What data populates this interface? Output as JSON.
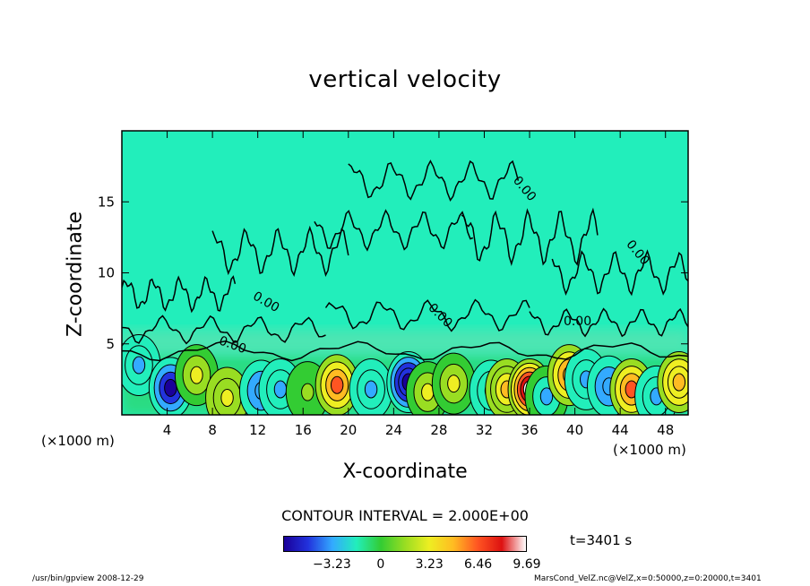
{
  "chart_data": {
    "type": "heatmap",
    "title": "vertical velocity",
    "xlabel": "X-coordinate",
    "ylabel": "Z-coordinate",
    "x_unit": "(×1000 m)",
    "xlim": [
      0,
      50
    ],
    "ylim": [
      0,
      20
    ],
    "x_ticks": [
      4,
      8,
      12,
      16,
      20,
      24,
      28,
      32,
      36,
      40,
      44,
      48
    ],
    "y_ticks": [
      5,
      10,
      15
    ],
    "contour_label": "0.00",
    "contour_interval": "CONTOUR INTERVAL = 2.000E+00",
    "time": "t=3401 s",
    "colorbar": {
      "min": -6.46,
      "max": 9.69,
      "tick_values": [
        -3.23,
        0,
        3.23,
        6.46,
        9.69
      ],
      "tick_labels": [
        "−3.23",
        "0",
        "3.23",
        "6.46",
        "9.69"
      ],
      "colors": [
        "#1a0099",
        "#2233dd",
        "#33aaff",
        "#22eebb",
        "#33cc33",
        "#99dd22",
        "#eeee22",
        "#ffbb22",
        "#ff5522",
        "#dd1111",
        "#ffffff"
      ]
    },
    "background_value": 0,
    "features": [
      {
        "x": 1.5,
        "z": 3.5,
        "value": -3.5
      },
      {
        "x": 4.3,
        "z": 1.9,
        "value": -6.0
      },
      {
        "x": 6.6,
        "z": 2.8,
        "value": 2.5
      },
      {
        "x": 9.3,
        "z": 1.2,
        "value": 3.5
      },
      {
        "x": 12.3,
        "z": 1.7,
        "value": -4.0
      },
      {
        "x": 14.0,
        "z": 1.8,
        "value": -3.5
      },
      {
        "x": 16.4,
        "z": 1.6,
        "value": 2.0
      },
      {
        "x": 19.0,
        "z": 2.1,
        "value": 6.0
      },
      {
        "x": 22.0,
        "z": 1.8,
        "value": -3.5
      },
      {
        "x": 25.3,
        "z": 2.3,
        "value": -6.5
      },
      {
        "x": 27.0,
        "z": 1.6,
        "value": 2.5
      },
      {
        "x": 29.3,
        "z": 2.2,
        "value": 3.0
      },
      {
        "x": 32.6,
        "z": 1.7,
        "value": -3.5
      },
      {
        "x": 34.0,
        "z": 1.8,
        "value": 4.5
      },
      {
        "x": 36.0,
        "z": 1.8,
        "value": 9.5
      },
      {
        "x": 37.5,
        "z": 1.3,
        "value": -3.0
      },
      {
        "x": 39.5,
        "z": 2.8,
        "value": 5.5
      },
      {
        "x": 41.0,
        "z": 2.5,
        "value": -3.5
      },
      {
        "x": 43.0,
        "z": 2.0,
        "value": -4.0
      },
      {
        "x": 45.0,
        "z": 1.8,
        "value": 6.0
      },
      {
        "x": 47.2,
        "z": 1.3,
        "value": -3.5
      },
      {
        "x": 49.2,
        "z": 2.3,
        "value": 5.0
      }
    ]
  },
  "footer": {
    "left": "/usr/bin/gpview   2008-12-29",
    "right": "MarsCond_VelZ.nc@VelZ,x=0:50000,z=0:20000,t=3401"
  }
}
